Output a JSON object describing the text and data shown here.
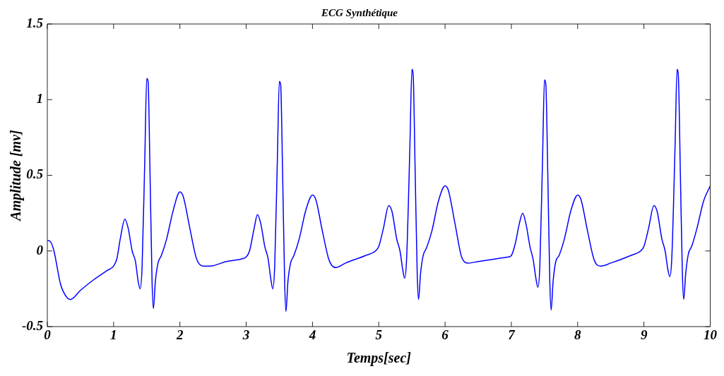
{
  "chart_data": {
    "type": "line",
    "title": "ECG Synthétique",
    "xlabel": "Temps[sec]",
    "ylabel": "Amplitude [mv]",
    "xlim": [
      0,
      10
    ],
    "xticks": [
      0,
      1,
      2,
      3,
      4,
      5,
      6,
      7,
      8,
      9,
      10
    ],
    "ylim": [
      -0.5,
      1.5
    ],
    "yticks": [
      -0.5,
      0,
      0.5,
      1,
      1.5
    ],
    "grid": false,
    "legend": false,
    "marker": "none",
    "line_style": "solid",
    "series": [
      {
        "color": "#0000ff",
        "x": [
          0,
          0.05,
          0.1,
          0.2,
          0.3,
          0.35,
          0.5,
          0.7,
          0.9,
          1.0,
          1.05,
          1.1,
          1.17,
          1.22,
          1.28,
          1.33,
          1.37,
          1.4,
          1.43,
          1.47,
          1.5,
          1.52,
          1.55,
          1.58,
          1.6,
          1.63,
          1.67,
          1.72,
          1.8,
          1.9,
          2.0,
          2.05,
          2.15,
          2.25,
          2.35,
          2.45,
          2.7,
          2.95,
          3.0,
          3.05,
          3.12,
          3.17,
          3.22,
          3.28,
          3.33,
          3.37,
          3.4,
          3.43,
          3.47,
          3.5,
          3.52,
          3.55,
          3.58,
          3.6,
          3.63,
          3.67,
          3.72,
          3.8,
          3.9,
          4.0,
          4.05,
          4.15,
          4.25,
          4.35,
          4.5,
          4.8,
          4.95,
          5.0,
          5.07,
          5.15,
          5.2,
          5.27,
          5.32,
          5.36,
          5.39,
          5.42,
          5.47,
          5.5,
          5.52,
          5.55,
          5.58,
          5.6,
          5.63,
          5.67,
          5.72,
          5.8,
          5.9,
          6.0,
          6.05,
          6.15,
          6.25,
          6.35,
          6.5,
          6.8,
          6.95,
          7.0,
          7.06,
          7.12,
          7.17,
          7.22,
          7.28,
          7.33,
          7.37,
          7.4,
          7.43,
          7.47,
          7.5,
          7.52,
          7.55,
          7.58,
          7.6,
          7.63,
          7.67,
          7.72,
          7.8,
          7.9,
          8.0,
          8.05,
          8.15,
          8.25,
          8.35,
          8.5,
          8.8,
          8.95,
          9.0,
          9.07,
          9.15,
          9.2,
          9.27,
          9.32,
          9.36,
          9.39,
          9.42,
          9.47,
          9.5,
          9.52,
          9.55,
          9.58,
          9.6,
          9.63,
          9.67,
          9.72,
          9.8,
          9.9,
          10.0
        ],
        "values": [
          0.07,
          0.06,
          0.0,
          -0.22,
          -0.31,
          -0.32,
          -0.26,
          -0.19,
          -0.13,
          -0.1,
          -0.05,
          0.08,
          0.21,
          0.15,
          0.0,
          -0.07,
          -0.2,
          -0.25,
          -0.1,
          0.6,
          1.14,
          1.12,
          0.5,
          -0.2,
          -0.38,
          -0.2,
          -0.08,
          -0.03,
          0.08,
          0.27,
          0.39,
          0.36,
          0.15,
          -0.05,
          -0.1,
          -0.1,
          -0.07,
          -0.05,
          -0.04,
          0.0,
          0.15,
          0.24,
          0.18,
          0.03,
          -0.05,
          -0.18,
          -0.25,
          -0.1,
          0.6,
          1.12,
          1.1,
          0.5,
          -0.2,
          -0.4,
          -0.2,
          -0.08,
          -0.03,
          0.08,
          0.27,
          0.37,
          0.34,
          0.13,
          -0.06,
          -0.11,
          -0.08,
          -0.03,
          0.0,
          0.03,
          0.15,
          0.3,
          0.26,
          0.08,
          0.0,
          -0.12,
          -0.18,
          -0.05,
          0.7,
          1.2,
          1.15,
          0.5,
          -0.15,
          -0.32,
          -0.15,
          -0.03,
          0.02,
          0.13,
          0.33,
          0.43,
          0.4,
          0.18,
          -0.04,
          -0.08,
          -0.07,
          -0.05,
          -0.04,
          -0.03,
          0.05,
          0.18,
          0.25,
          0.18,
          0.03,
          -0.06,
          -0.18,
          -0.24,
          -0.1,
          0.6,
          1.13,
          1.1,
          0.5,
          -0.2,
          -0.39,
          -0.2,
          -0.07,
          -0.03,
          0.08,
          0.27,
          0.37,
          0.34,
          0.13,
          -0.06,
          -0.1,
          -0.08,
          -0.03,
          0.0,
          0.03,
          0.15,
          0.3,
          0.26,
          0.08,
          0.0,
          -0.12,
          -0.17,
          -0.05,
          0.7,
          1.2,
          1.15,
          0.5,
          -0.15,
          -0.32,
          -0.15,
          -0.02,
          0.03,
          0.15,
          0.33,
          0.43
        ]
      }
    ]
  }
}
